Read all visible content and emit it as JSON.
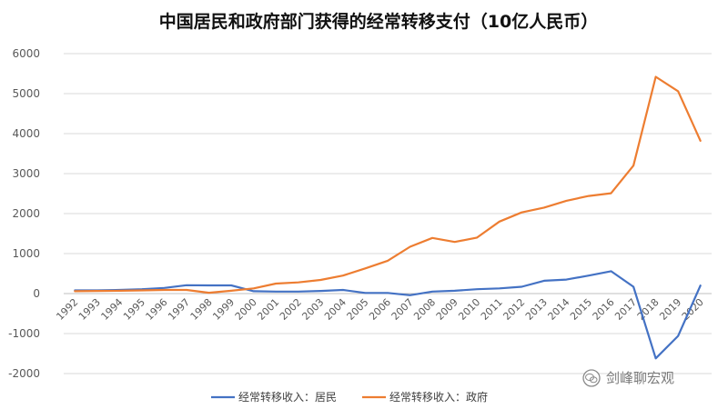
{
  "chart_data": {
    "type": "line",
    "title": "中国居民和政府部门获得的经常转移支付（10亿人民币）",
    "xlabel": "",
    "ylabel": "",
    "ylim": [
      -2000,
      6000
    ],
    "yticks": [
      "6000",
      "5000",
      "4000",
      "3000",
      "2000",
      "1000",
      "0",
      "-1000",
      "-2000"
    ],
    "x": [
      "1992",
      "1993",
      "1994",
      "1995",
      "1996",
      "1997",
      "1998",
      "1999",
      "2000",
      "2001",
      "2002",
      "2003",
      "2004",
      "2005",
      "2006",
      "2007",
      "2008",
      "2009",
      "2010",
      "2011",
      "2012",
      "2013",
      "2014",
      "2015",
      "2016",
      "2017",
      "2018",
      "2019",
      "2020"
    ],
    "grid": true,
    "legend": "bottom",
    "series": [
      {
        "name": "经常转移收入：居民",
        "color": "#4472C4",
        "values": [
          80,
          80,
          90,
          110,
          140,
          210,
          205,
          205,
          60,
          50,
          50,
          65,
          90,
          15,
          15,
          -40,
          50,
          70,
          110,
          130,
          170,
          320,
          350,
          450,
          560,
          170,
          -1620,
          -1060,
          200
        ]
      },
      {
        "name": "经常转移收入：政府",
        "color": "#ED7D31",
        "values": [
          60,
          65,
          70,
          80,
          90,
          90,
          20,
          70,
          130,
          250,
          280,
          340,
          450,
          630,
          820,
          1170,
          1390,
          1290,
          1400,
          1800,
          2030,
          2150,
          2320,
          2440,
          2510,
          3200,
          5420,
          5060,
          3820
        ]
      }
    ]
  },
  "watermark": {
    "text": "剑峰聊宏观",
    "icon": "wechat-icon"
  }
}
